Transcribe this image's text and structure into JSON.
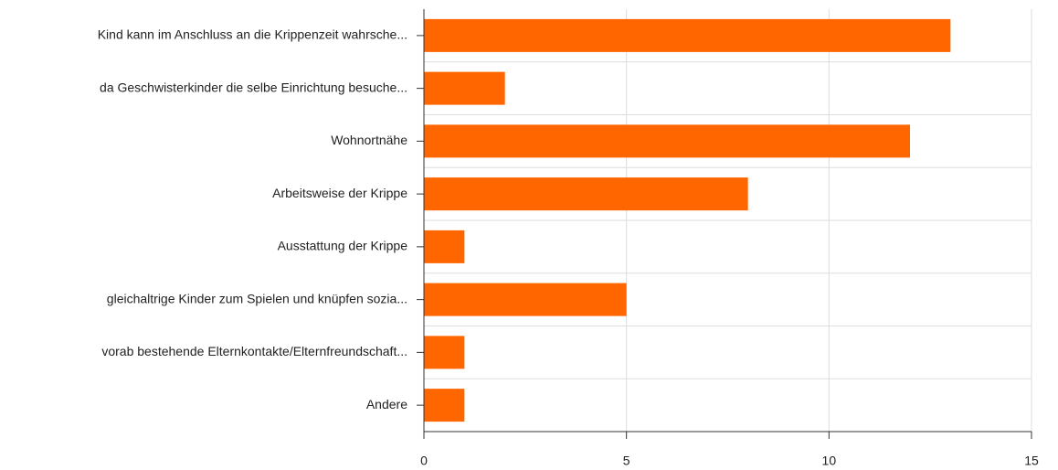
{
  "chart_data": {
    "type": "bar",
    "orientation": "horizontal",
    "categories": [
      "Kind kann im Anschluss an die Krippenzeit wahrsche...",
      "da Geschwisterkinder die selbe Einrichtung besuche...",
      "Wohnortnähe",
      "Arbeitsweise der Krippe",
      "Ausstattung der Krippe",
      "gleichaltrige Kinder zum Spielen und knüpfen sozia...",
      "vorab bestehende Elternkontakte/Elternfreundschaft...",
      "Andere"
    ],
    "values": [
      13,
      2,
      12,
      8,
      1,
      5,
      1,
      1
    ],
    "color": "#ff6600",
    "xlim": [
      0,
      15
    ],
    "xticks": [
      0,
      5,
      10,
      15
    ],
    "grid": true
  }
}
